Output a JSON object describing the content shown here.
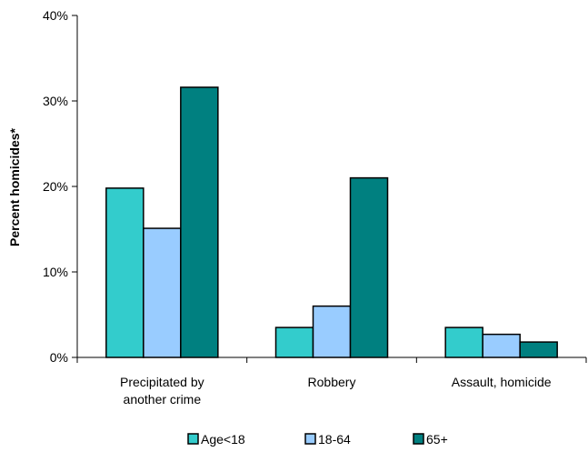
{
  "chart_data": {
    "type": "bar",
    "title": "",
    "xlabel": "",
    "ylabel": "Percent homicides*",
    "ylim": [
      0,
      40
    ],
    "y_ticks": [
      "0%",
      "10%",
      "20%",
      "30%",
      "40%"
    ],
    "categories": [
      [
        "Precipitated by",
        "another crime"
      ],
      [
        "Robbery"
      ],
      [
        "Assault, homicide"
      ]
    ],
    "series": [
      {
        "name": "Age<18",
        "color": "#33cccc",
        "values": [
          19.8,
          3.5,
          3.5
        ]
      },
      {
        "name": "18-64",
        "color": "#99ccff",
        "values": [
          15.1,
          6.0,
          2.7
        ]
      },
      {
        "name": "65+",
        "color": "#008080",
        "values": [
          31.6,
          21.0,
          1.8
        ]
      }
    ],
    "grid": false,
    "legend_position": "bottom"
  }
}
